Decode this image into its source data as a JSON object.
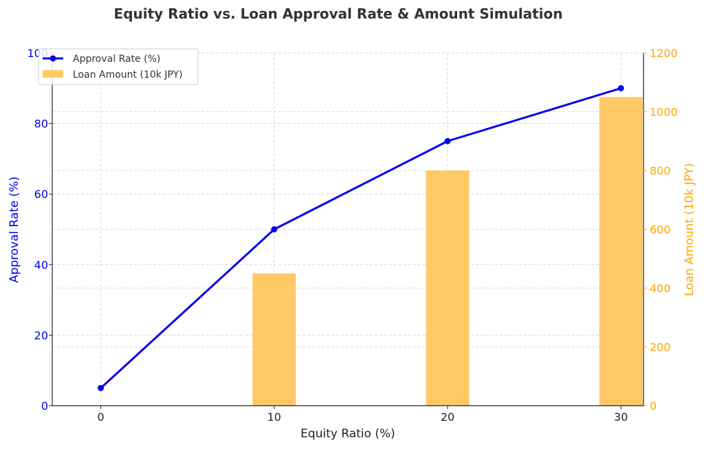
{
  "chart_data": {
    "type": "bar+line",
    "title": "Equity Ratio vs. Loan Approval Rate & Amount Simulation",
    "xlabel": "Equity Ratio (%)",
    "ylabel_left": "Approval Rate (%)",
    "ylabel_right": "Loan Amount (10k JPY)",
    "x": [
      0,
      10,
      20,
      30
    ],
    "x_ticks": [
      "0",
      "10",
      "20",
      "30"
    ],
    "xlim": [
      -2.8,
      31.3
    ],
    "ylim_left": [
      0,
      100
    ],
    "ylim_right": [
      0,
      1200
    ],
    "y_ticks_left": [
      "0",
      "20",
      "40",
      "60",
      "80",
      "100"
    ],
    "y_ticks_right": [
      "0",
      "200",
      "400",
      "600",
      "800",
      "1000",
      "1200"
    ],
    "grid": true,
    "legend_placement": "top-left",
    "series": [
      {
        "name": "Approval Rate (%)",
        "type": "line",
        "axis": "left",
        "marker": "circle",
        "color": "#0000ee",
        "values": [
          5,
          50,
          75,
          90
        ]
      },
      {
        "name": "Loan Amount (10k JPY)",
        "type": "bar",
        "axis": "right",
        "color": "#ffc966",
        "values": [
          0,
          450,
          800,
          1050
        ]
      }
    ],
    "colors": {
      "left_axis": "#0000ee",
      "right_axis": "#ffa500",
      "title": "#333333",
      "grid": "#cccccc"
    }
  }
}
